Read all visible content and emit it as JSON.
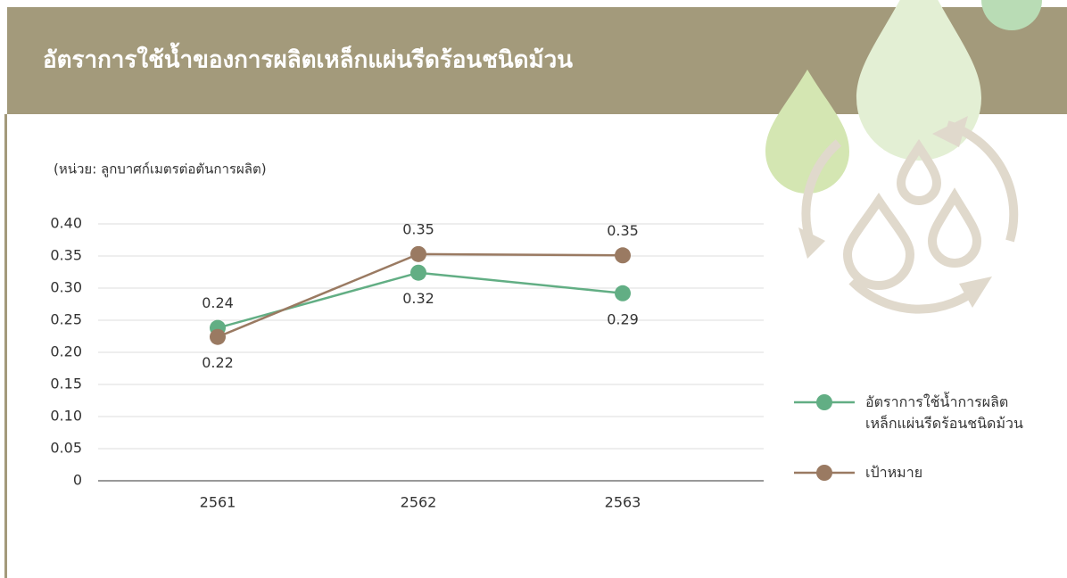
{
  "chart_data": {
    "type": "line",
    "title": "อัตราการใช้น้ำของการผลิตเหล็กแผ่นรีดร้อนชนิดม้วน",
    "subtitle": "(หน่วย: ลูกบาศก์เมตรต่อตันการผลิต)",
    "categories": [
      "2561",
      "2562",
      "2563"
    ],
    "series": [
      {
        "name": "อัตราการใช้น้ำการผลิต\nเหล็กแผ่นรีดร้อนชนิดม้วน",
        "color": "#62ae84",
        "values": [
          0.238,
          0.324,
          0.292
        ],
        "value_labels": [
          "0.24",
          "0.32",
          "0.29"
        ]
      },
      {
        "name": "เป้าหมาย",
        "color": "#9a7a62",
        "values": [
          0.224,
          0.353,
          0.351
        ],
        "value_labels": [
          "0.22",
          "0.35",
          "0.35"
        ]
      }
    ],
    "ylim": [
      0,
      0.4
    ],
    "yticks": [
      0,
      0.05,
      {
        "value": 0.1,
        "label": "0.10"
      },
      0.15,
      {
        "value": 0.2,
        "label": "0.20"
      },
      0.25,
      {
        "value": 0.3,
        "label": "0.30"
      },
      0.35,
      {
        "value": 0.4,
        "label": "0.40"
      }
    ],
    "grid": true
  }
}
